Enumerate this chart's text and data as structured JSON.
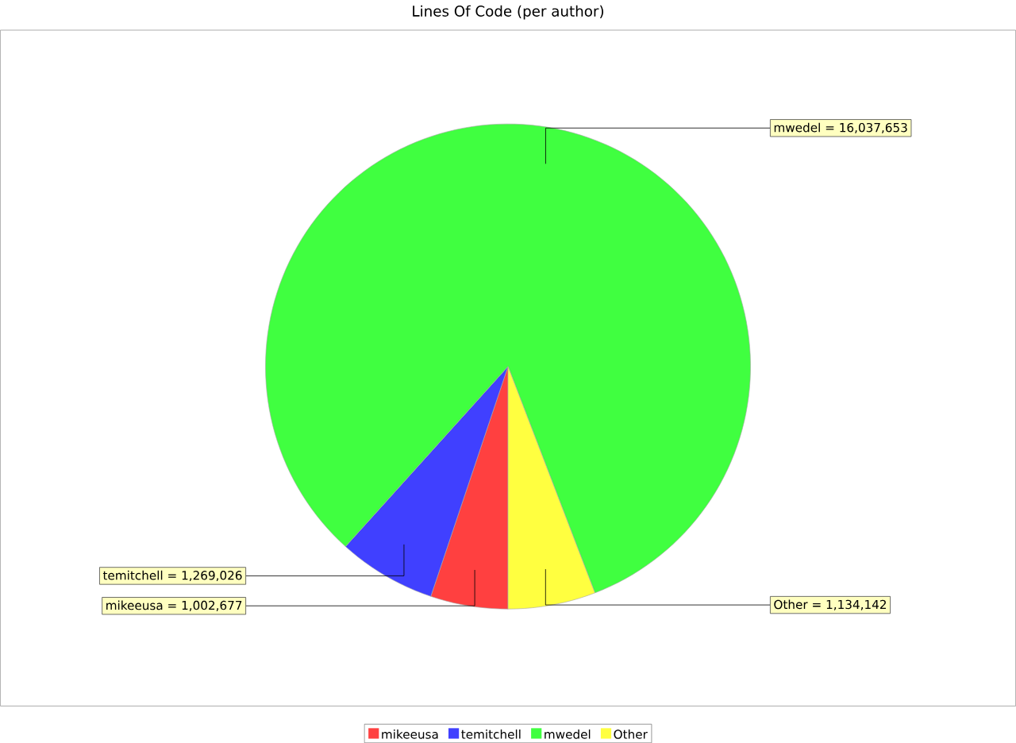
{
  "chart_data": {
    "type": "pie",
    "title": "Lines Of Code (per author)",
    "categories": [
      "mikeeusa",
      "temitchell",
      "mwedel",
      "Other"
    ],
    "values": [
      1002677,
      1269026,
      16037653,
      1134142
    ],
    "colors": [
      "#ff4040",
      "#4040ff",
      "#40ff40",
      "#ffff40"
    ],
    "value_labels": [
      "= 1,002,677",
      "= 1,269,026",
      "= 16,037,653",
      "= 1,134,142"
    ],
    "legend": "bottom"
  }
}
